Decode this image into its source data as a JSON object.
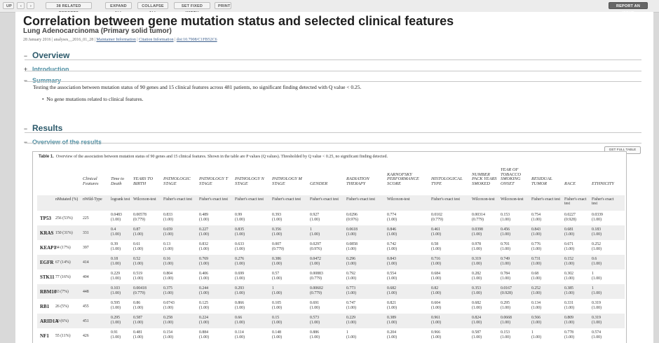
{
  "toolbar": {
    "up": "UP",
    "prev": "‹",
    "next": "›",
    "related": "38 RELATED REPORTS",
    "expand": "EXPAND ALL",
    "collapse": "COLLAPSE ALL",
    "fixed": "SET FIXED WIDTH",
    "print": "PRINT",
    "report": "REPORT AN ISSUE"
  },
  "header": {
    "title": "Correlation between gene mutation status and selected clinical features",
    "subtitle": "Lung Adenocarcinoma (Primary solid tumor)",
    "date": "28 January 2016",
    "analysis": "analyses__2016_01_28",
    "maintainer": "Maintainer Information",
    "citation": "Citation Information",
    "doi": "doi:10.7908/C1FB52C6"
  },
  "sections": {
    "overview": "Overview",
    "introduction": "Introduction",
    "summary": "Summary",
    "summary_text": "Testing the association between mutation status of 90 genes and 15 clinical features across 481 patients, no significant finding detected with Q value < 0.25.",
    "bullet": "No gene mutations related to clinical features.",
    "results": "Results",
    "overview_results": "Overview of the results",
    "minus": "−",
    "plus": "+"
  },
  "table": {
    "get_full": "GET FULL TABLE",
    "caption_label": "Table 1.",
    "caption": "Overview of the association between mutation status of 90 genes and 15 clinical features. Shown in the table are P values (Q values). Thresholded by Q value < 0.25, no significant finding detected.",
    "features": [
      "Clinical Features",
      "Time to Death",
      "YEARS TO BIRTH",
      "PATHOLOGIC STAGE",
      "PATHOLOGY T STAGE",
      "PATHOLOGY N STAGE",
      "PATHOLOGY M STAGE",
      "GENDER",
      "RADIATION THERAPY",
      "KARNOFSKY PERFORMANCE SCORE",
      "HISTOLOGICAL TYPE",
      "NUMBER PACK YEARS SMOKED",
      "YEAR OF TOBACCO SMOKING ONSET",
      "RESIDUAL TUMOR",
      "RACE",
      "ETHNICITY"
    ],
    "subhead": [
      "nMutated (%)",
      "nWild-Type",
      "logrank test",
      "Wilcoxon-test",
      "Fisher's exact test",
      "Fisher's exact test",
      "Fisher's exact test",
      "Fisher's exact test",
      "Fisher's exact test",
      "Fisher's exact test",
      "Wilcoxon-test",
      "Fisher's exact test",
      "Wilcoxon-test",
      "Wilcoxon-test",
      "Fisher's exact test",
      "Fisher's exact test",
      "Fisher's exact test"
    ],
    "rows": [
      {
        "gene": "TP53",
        "mut": "256 (53%)",
        "wt": "225",
        "p": [
          "0.0483",
          "0.00578",
          "0.833",
          "0.489",
          "0.99",
          "0.393",
          "0.927",
          "0.0296",
          "0.774",
          "0.0102",
          "0.00314",
          "0.153",
          "0.754",
          "0.0227",
          "0.0339"
        ],
        "q": [
          "(1.00)",
          "(0.779)",
          "(1.00)",
          "(1.00)",
          "(1.00)",
          "(1.00)",
          "(1.00)",
          "(0.976)",
          "(1.00)",
          "(0.779)",
          "(0.779)",
          "(1.00)",
          "(1.00)",
          "(0.928)",
          "(1.00)"
        ]
      },
      {
        "gene": "KRAS",
        "mut": "150 (31%)",
        "wt": "331",
        "p": [
          "0.4",
          "0.87",
          "0.659",
          "0.227",
          "0.835",
          "0.356",
          "1",
          "0.0618",
          "0.846",
          "0.461",
          "0.0398",
          "0.456",
          "0.843",
          "0.681",
          "0.183"
        ],
        "q": [
          "(1.00)",
          "(1.00)",
          "(1.00)",
          "(1.00)",
          "(1.00)",
          "(1.00)",
          "(1.00)",
          "(1.00)",
          "(1.00)",
          "(1.00)",
          "(1.00)",
          "(1.00)",
          "(1.00)",
          "(1.00)",
          "(1.00)"
        ]
      },
      {
        "gene": "KEAP1",
        "mut": "84 (17%)",
        "wt": "397",
        "p": [
          "0.39",
          "0.61",
          "0.13",
          "0.832",
          "0.633",
          "0.007",
          "0.0297",
          "0.0858",
          "0.742",
          "0.58",
          "0.978",
          "0.701",
          "0.776",
          "0.671",
          "0.252"
        ],
        "q": [
          "(1.00)",
          "(1.00)",
          "(1.00)",
          "(1.00)",
          "(1.00)",
          "(0.779)",
          "(0.976)",
          "(1.00)",
          "(1.00)",
          "(1.00)",
          "(1.00)",
          "(1.00)",
          "(1.00)",
          "(1.00)",
          "(1.00)"
        ]
      },
      {
        "gene": "EGFR",
        "mut": "67 (14%)",
        "wt": "414",
        "p": [
          "0.18",
          "0.52",
          "0.16",
          "0.769",
          "0.276",
          "0.386",
          "0.0472",
          "0.296",
          "0.843",
          "0.716",
          "0.319",
          "0.749",
          "0.731",
          "0.152",
          "0.6"
        ],
        "q": [
          "(1.00)",
          "(1.00)",
          "(1.00)",
          "(1.00)",
          "(1.00)",
          "(1.00)",
          "(1.00)",
          "(1.00)",
          "(1.00)",
          "(1.00)",
          "(1.00)",
          "(1.00)",
          "(1.00)",
          "(1.00)",
          "(1.00)"
        ]
      },
      {
        "gene": "STK11",
        "mut": "77 (16%)",
        "wt": "404",
        "p": [
          "0.229",
          "0.519",
          "0.804",
          "0.406",
          "0.699",
          "0.57",
          "0.00883",
          "0.792",
          "0.554",
          "0.684",
          "0.282",
          "0.784",
          "0.68",
          "0.302",
          "1"
        ],
        "q": [
          "(1.00)",
          "(1.00)",
          "(1.00)",
          "(1.00)",
          "(1.00)",
          "(1.00)",
          "(0.779)",
          "(1.00)",
          "(1.00)",
          "(1.00)",
          "(1.00)",
          "(1.00)",
          "(1.00)",
          "(1.00)",
          "(1.00)"
        ]
      },
      {
        "gene": "RBM10",
        "mut": "33 (7%)",
        "wt": "448",
        "p": [
          "0.103",
          "0.00418",
          "0.375",
          "0.244",
          "0.293",
          "1",
          "0.00602",
          "0.773",
          "0.682",
          "0.82",
          "0.353",
          "0.0167",
          "0.252",
          "0.385",
          "1"
        ],
        "q": [
          "(1.00)",
          "(0.779)",
          "(1.00)",
          "(1.00)",
          "(1.00)",
          "(1.00)",
          "(0.779)",
          "(1.00)",
          "(1.00)",
          "(1.00)",
          "(1.00)",
          "(0.928)",
          "(1.00)",
          "(1.00)",
          "(1.00)"
        ]
      },
      {
        "gene": "RB1",
        "mut": "26 (5%)",
        "wt": "455",
        "p": [
          "0.595",
          "0.86",
          "0.0743",
          "0.125",
          "0.866",
          "0.105",
          "0.691",
          "0.747",
          "0.821",
          "0.604",
          "0.682",
          "0.295",
          "0.134",
          "0.331",
          "0.319"
        ],
        "q": [
          "(1.00)",
          "(1.00)",
          "(1.00)",
          "(1.00)",
          "(1.00)",
          "(1.00)",
          "(1.00)",
          "(1.00)",
          "(1.00)",
          "(1.00)",
          "(1.00)",
          "(1.00)",
          "(1.00)",
          "(1.00)",
          "(1.00)"
        ]
      },
      {
        "gene": "ARID1A",
        "mut": "30 (6%)",
        "wt": "451",
        "p": [
          "0.295",
          "0.587",
          "0.258",
          "0.224",
          "0.66",
          "0.15",
          "0.573",
          "0.229",
          "0.389",
          "0.961",
          "0.824",
          "0.0668",
          "0.566",
          "0.809",
          "0.319"
        ],
        "q": [
          "(1.00)",
          "(1.00)",
          "(1.00)",
          "(1.00)",
          "(1.00)",
          "(1.00)",
          "(1.00)",
          "(1.00)",
          "(1.00)",
          "(1.00)",
          "(1.00)",
          "(1.00)",
          "(1.00)",
          "(1.00)",
          "(1.00)"
        ]
      },
      {
        "gene": "NF1",
        "mut": "55 (11%)",
        "wt": "426",
        "p": [
          "0.91",
          "0.481",
          "0.154",
          "0.884",
          "0.114",
          "0.148",
          "0.886",
          "1",
          "0.204",
          "0.966",
          "0.587",
          "0.153",
          "1",
          "0.778",
          "0.574"
        ],
        "q": [
          "(1.00)",
          "(1.00)",
          "(1.00)",
          "(1.00)",
          "(1.00)",
          "(1.00)",
          "(1.00)",
          "(1.00)",
          "(1.00)",
          "(1.00)",
          "(1.00)",
          "(1.00)",
          "(1.00)",
          "(1.00)",
          "(1.00)"
        ]
      }
    ]
  }
}
